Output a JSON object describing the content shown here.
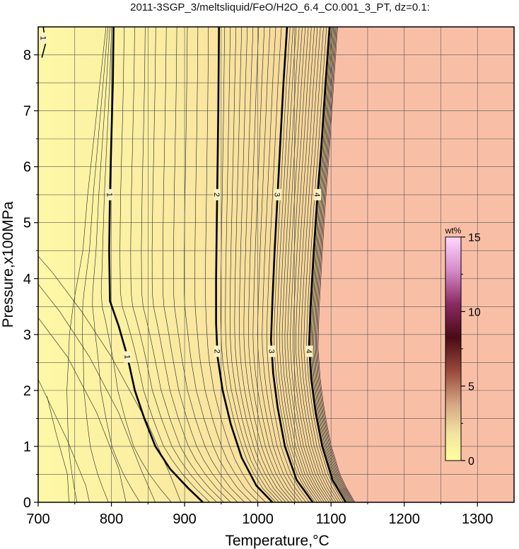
{
  "chart_data": {
    "type": "heatmap",
    "title": "2011-3SGP_3/meltsliquid/FeO/H2O_6.4_C0.001_3_PT, dz=0.1:",
    "xlabel": "Temperature,°C",
    "ylabel": "Pressure,x100MPa",
    "xlim": [
      700,
      1350
    ],
    "ylim": [
      0,
      8.5
    ],
    "x_ticks": [
      "700",
      "800",
      "900",
      "1000",
      "1100",
      "1200",
      "1300"
    ],
    "y_ticks": [
      "0",
      "1",
      "2",
      "3",
      "4",
      "5",
      "6",
      "7",
      "8"
    ],
    "grid": true,
    "colorbar": {
      "unit": "wt%",
      "range": [
        0,
        15
      ],
      "ticks": [
        "0",
        "5",
        "10",
        "15"
      ],
      "placement": "right-inside"
    },
    "liquid_absent_color": "#f9bfa6",
    "contour_interval": 0.1,
    "labeled_contours": [
      {
        "label": "1",
        "points": [
          [
            707,
            8.5
          ],
          [
            710,
            8.2
          ],
          [
            705,
            7.95
          ]
        ]
      },
      {
        "label": "1",
        "points": [
          [
            925,
            0
          ],
          [
            905,
            0.25
          ],
          [
            880,
            0.6
          ],
          [
            860,
            1.0
          ],
          [
            845,
            1.5
          ],
          [
            832,
            2.0
          ],
          [
            822,
            2.6
          ],
          [
            810,
            3.15
          ],
          [
            798,
            3.6
          ],
          [
            797,
            4.5
          ],
          [
            798,
            5.5
          ],
          [
            800,
            6.5
          ],
          [
            802,
            7.5
          ],
          [
            803,
            8.5
          ]
        ]
      },
      {
        "label": "2",
        "points": [
          [
            1020,
            0
          ],
          [
            998,
            0.3
          ],
          [
            978,
            0.8
          ],
          [
            963,
            1.4
          ],
          [
            952,
            2.0
          ],
          [
            945,
            2.6
          ],
          [
            943,
            3.2
          ],
          [
            943,
            4.0
          ],
          [
            944,
            5.0
          ],
          [
            945,
            6.0
          ],
          [
            946,
            7.0
          ],
          [
            947,
            8.5
          ]
        ]
      },
      {
        "label": "3",
        "points": [
          [
            1075,
            0
          ],
          [
            1053,
            0.4
          ],
          [
            1037,
            1.0
          ],
          [
            1027,
            1.7
          ],
          [
            1021,
            2.3
          ],
          [
            1018,
            2.9
          ],
          [
            1020,
            3.6
          ],
          [
            1023,
            4.5
          ],
          [
            1027,
            5.5
          ],
          [
            1031,
            6.5
          ],
          [
            1035,
            7.5
          ],
          [
            1040,
            8.5
          ]
        ]
      },
      {
        "label": "4",
        "points": [
          [
            1120,
            0
          ],
          [
            1102,
            0.4
          ],
          [
            1088,
            1.0
          ],
          [
            1079,
            1.6
          ],
          [
            1073,
            2.2
          ],
          [
            1070,
            2.8
          ],
          [
            1072,
            3.5
          ],
          [
            1076,
            4.4
          ],
          [
            1081,
            5.4
          ],
          [
            1087,
            6.4
          ],
          [
            1092,
            7.4
          ],
          [
            1098,
            8.5
          ]
        ]
      }
    ]
  }
}
